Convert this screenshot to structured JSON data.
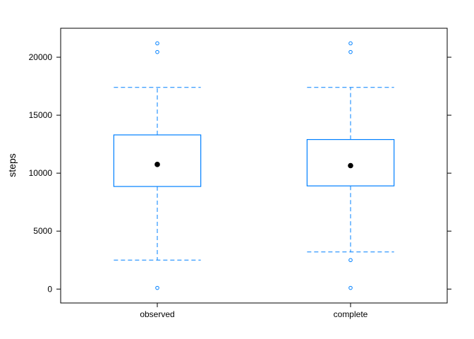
{
  "chart_data": {
    "type": "boxplot",
    "title": "",
    "xlabel": "",
    "ylabel": "steps",
    "ylim": [
      -1200,
      22500
    ],
    "y_ticks": [
      0,
      5000,
      10000,
      15000,
      20000
    ],
    "grid": false,
    "categories": [
      "observed",
      "complete"
    ],
    "boxes": [
      {
        "name": "observed",
        "whisker_low": 2500,
        "q1": 8850,
        "median": 10750,
        "q3": 13300,
        "whisker_high": 17400,
        "outliers": [
          100,
          20450,
          21200
        ]
      },
      {
        "name": "complete",
        "whisker_low": 3200,
        "q1": 8900,
        "median": 10650,
        "q3": 12900,
        "whisker_high": 17400,
        "outliers": [
          100,
          2500,
          20450,
          21200
        ]
      }
    ],
    "colors": {
      "box": "#0080ff",
      "median_dot": "#000000",
      "frame": "#000000"
    }
  }
}
